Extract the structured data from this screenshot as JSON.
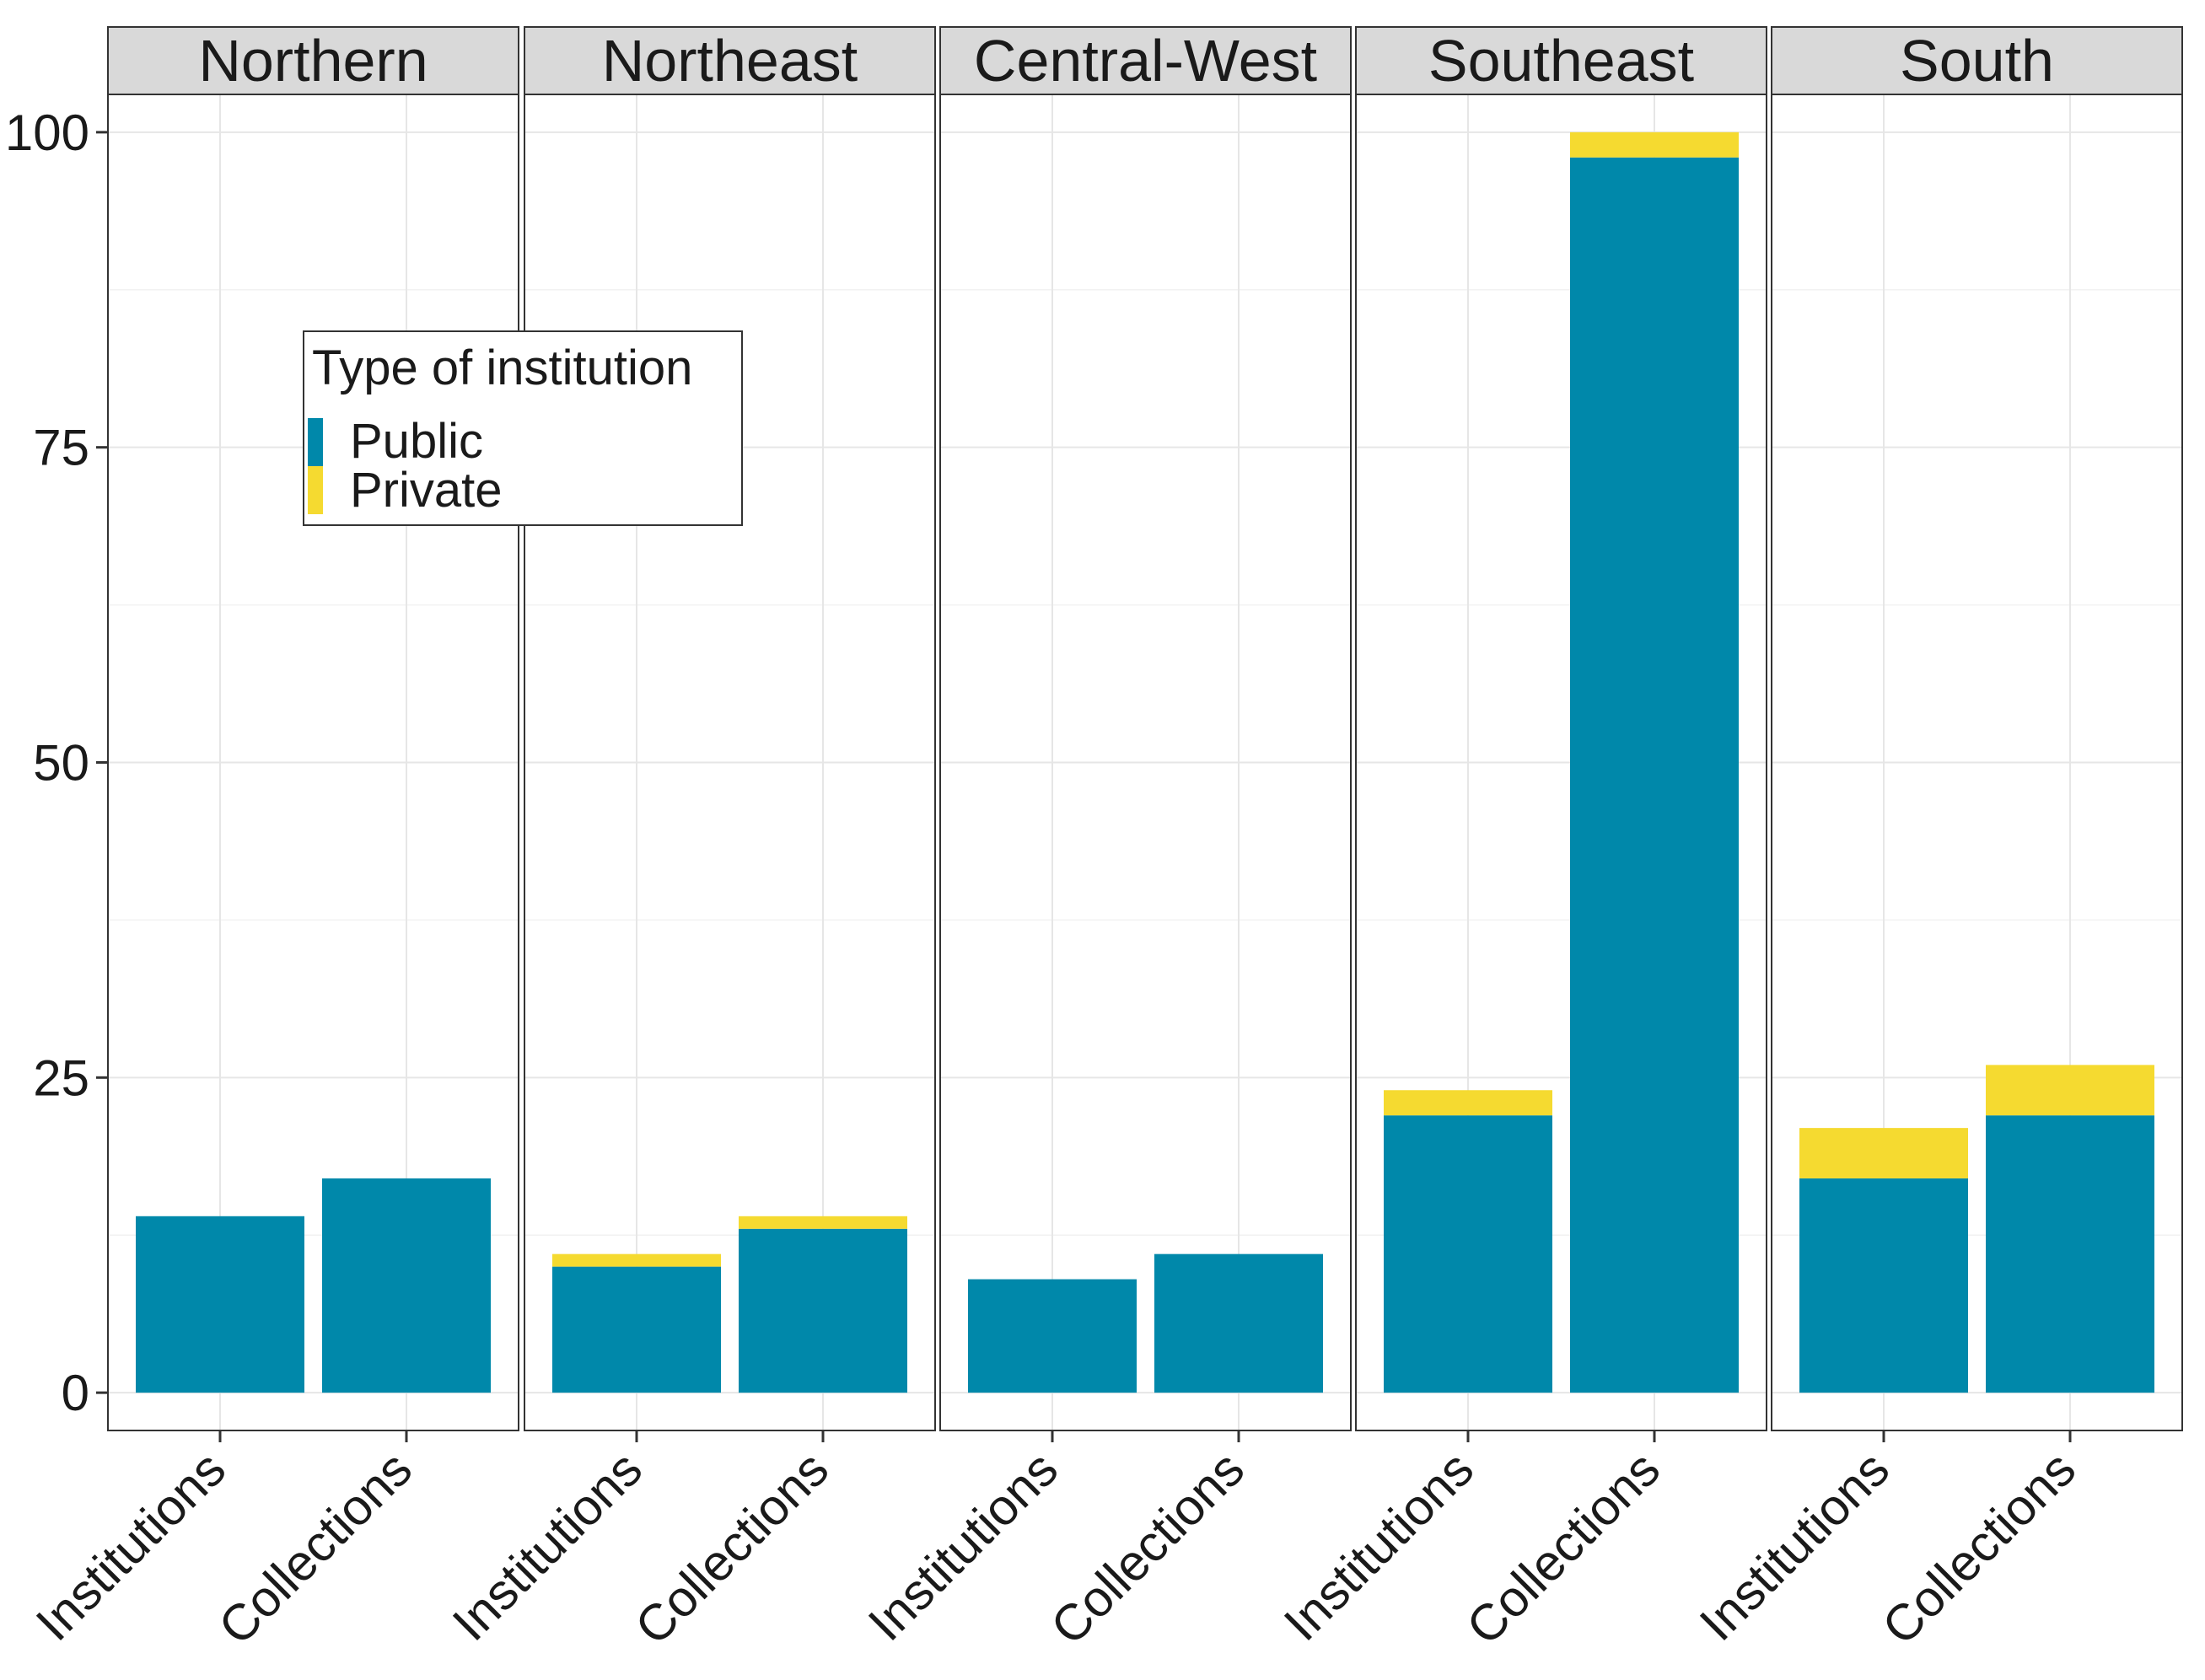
{
  "chart_data": {
    "type": "bar",
    "stacked": true,
    "facet_by": "region",
    "facets": [
      "Northern",
      "Northeast",
      "Central-West",
      "Southeast",
      "South"
    ],
    "categories": [
      "Institutions",
      "Collections"
    ],
    "series": [
      {
        "name": "Public",
        "color": "#0088AA",
        "values": {
          "Northern": [
            14,
            17
          ],
          "Northeast": [
            10,
            13
          ],
          "Central-West": [
            9,
            11
          ],
          "Southeast": [
            22,
            98
          ],
          "South": [
            17,
            22
          ]
        }
      },
      {
        "name": "Private",
        "color": "#F5DA30",
        "values": {
          "Northern": [
            0,
            0
          ],
          "Northeast": [
            1,
            1
          ],
          "Central-West": [
            0,
            0
          ],
          "Southeast": [
            2,
            2
          ],
          "South": [
            4,
            4
          ]
        }
      }
    ],
    "ylim": [
      -3,
      103
    ],
    "yticks": [
      0,
      25,
      50,
      75,
      100
    ],
    "ytick_labels": [
      "0",
      "25",
      "50",
      "75",
      "100"
    ],
    "xlabel": "",
    "ylabel": "",
    "legend": {
      "title": "Type of institution",
      "position": "top-left-inside",
      "entries": [
        "Public",
        "Private"
      ]
    },
    "grid": true
  }
}
